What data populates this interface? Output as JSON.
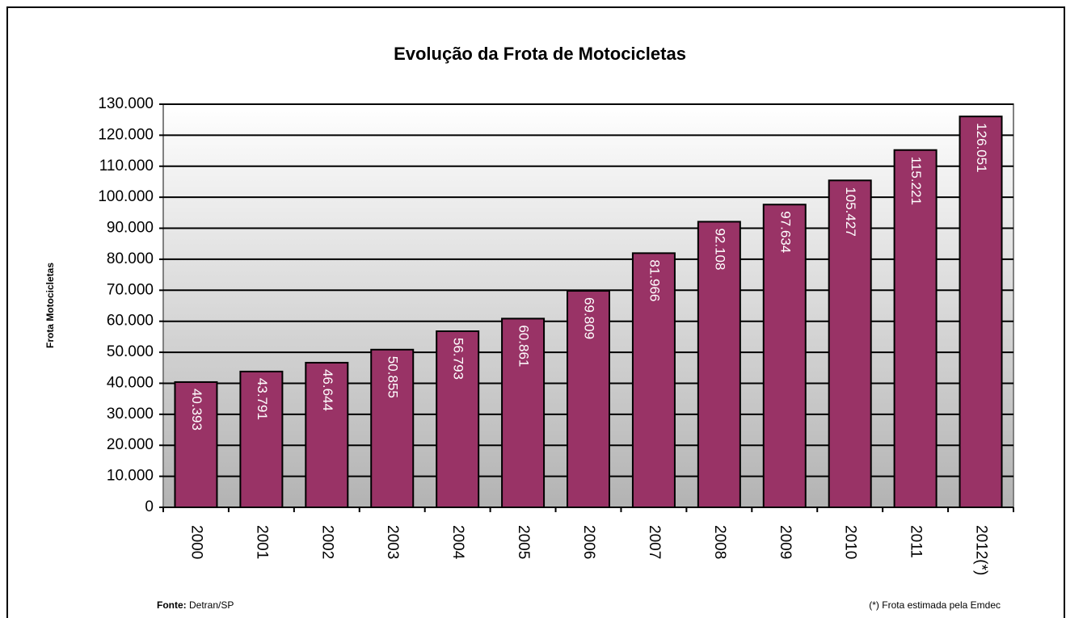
{
  "chart_data": {
    "type": "bar",
    "title": "Evolução da Frota de Motocicletas",
    "y_label": "Frota Motocicletas",
    "categories": [
      "2000",
      "2001",
      "2002",
      "2003",
      "2004",
      "2005",
      "2006",
      "2007",
      "2008",
      "2009",
      "2010",
      "2011",
      "2012(*)"
    ],
    "values": [
      40393,
      43791,
      46644,
      50855,
      56793,
      60861,
      69809,
      81966,
      92108,
      97634,
      105427,
      115221,
      126051
    ],
    "value_labels": [
      "40.393",
      "43.791",
      "46.644",
      "50.855",
      "56.793",
      "60.861",
      "69.809",
      "81.966",
      "92.108",
      "97.634",
      "105.427",
      "115.221",
      "126.051"
    ],
    "color": "#993366",
    "ylim": [
      0,
      130000
    ],
    "yticks": [
      0,
      {
        "value": 10000,
        "label": "10.000"
      },
      {
        "value": 20000,
        "label": "20.000"
      },
      {
        "value": 30000,
        "label": "30.000"
      },
      {
        "value": 40000,
        "label": "40.000"
      },
      {
        "value": 50000,
        "label": "50.000"
      },
      {
        "value": 60000,
        "label": "60.000"
      },
      {
        "value": 70000,
        "label": "70.000"
      },
      {
        "value": 80000,
        "label": "80.000"
      },
      {
        "value": 90000,
        "label": "90.000"
      },
      {
        "value": 100000,
        "label": "100.000"
      },
      {
        "value": 110000,
        "label": "110.000"
      },
      {
        "value": 120000,
        "label": "120.000"
      },
      {
        "value": 130000,
        "label": "130.000"
      }
    ],
    "grid": true,
    "source_label": "Fonte:",
    "source": "Detran/SP",
    "note": "(*) Frota estimada pela Emdec"
  }
}
